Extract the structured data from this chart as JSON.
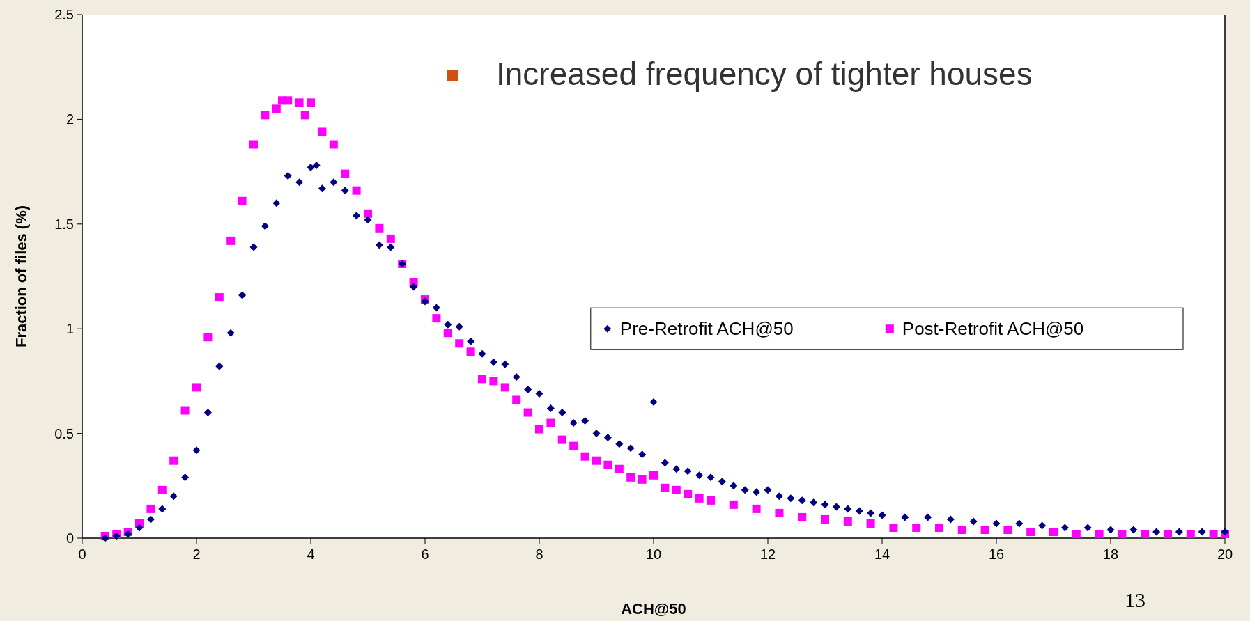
{
  "chart_data": {
    "type": "scatter",
    "xlabel": "ACH@50",
    "ylabel": "Fraction of files (%)",
    "xlim": [
      0,
      20
    ],
    "xticks": [
      0,
      2,
      4,
      6,
      8,
      10,
      12,
      14,
      16,
      18,
      20
    ],
    "ylim": [
      0,
      2.5
    ],
    "yticks": [
      0,
      0.5,
      1,
      1.5,
      2,
      2.5
    ],
    "grid": false,
    "legend": "right",
    "annotations": [
      "Increased frequency of tighter houses",
      "13"
    ],
    "series": [
      {
        "name": "Pre-Retrofit ACH@50",
        "color": "#000080",
        "marker": "diamond",
        "x": [
          0.4,
          0.6,
          0.8,
          1.0,
          1.2,
          1.4,
          1.6,
          1.8,
          2.0,
          2.2,
          2.4,
          2.6,
          2.8,
          3.0,
          3.2,
          3.4,
          3.6,
          3.8,
          4.0,
          4.1,
          4.2,
          4.4,
          4.6,
          4.8,
          5.0,
          5.2,
          5.4,
          5.6,
          5.8,
          6.0,
          6.2,
          6.4,
          6.6,
          6.8,
          7.0,
          7.2,
          7.4,
          7.6,
          7.8,
          8.0,
          8.2,
          8.4,
          8.6,
          8.8,
          9.0,
          9.2,
          9.4,
          9.6,
          9.8,
          10.0,
          10.2,
          10.4,
          10.6,
          10.8,
          11.0,
          11.2,
          11.4,
          11.6,
          11.8,
          12.0,
          12.2,
          12.4,
          12.6,
          12.8,
          13.0,
          13.2,
          13.4,
          13.6,
          13.8,
          14.0,
          14.4,
          14.8,
          15.2,
          15.6,
          16.0,
          16.4,
          16.8,
          17.2,
          17.6,
          18.0,
          18.4,
          18.8,
          19.2,
          19.6,
          20.0
        ],
        "values": [
          0.0,
          0.01,
          0.02,
          0.05,
          0.09,
          0.14,
          0.2,
          0.29,
          0.42,
          0.6,
          0.82,
          0.98,
          1.16,
          1.39,
          1.49,
          1.6,
          1.73,
          1.7,
          1.77,
          1.78,
          1.67,
          1.7,
          1.66,
          1.54,
          1.52,
          1.4,
          1.39,
          1.31,
          1.2,
          1.13,
          1.1,
          1.02,
          1.01,
          0.94,
          0.88,
          0.84,
          0.83,
          0.77,
          0.71,
          0.69,
          0.62,
          0.6,
          0.55,
          0.56,
          0.5,
          0.48,
          0.45,
          0.43,
          0.4,
          0.65,
          0.36,
          0.33,
          0.32,
          0.3,
          0.29,
          0.27,
          0.25,
          0.23,
          0.22,
          0.23,
          0.2,
          0.19,
          0.18,
          0.17,
          0.16,
          0.15,
          0.14,
          0.13,
          0.12,
          0.11,
          0.1,
          0.1,
          0.09,
          0.08,
          0.07,
          0.07,
          0.06,
          0.05,
          0.05,
          0.04,
          0.04,
          0.03,
          0.03,
          0.03,
          0.03
        ]
      },
      {
        "name": "Post-Retrofit ACH@50",
        "color": "#ff00ff",
        "marker": "square",
        "x": [
          0.4,
          0.6,
          0.8,
          1.0,
          1.2,
          1.4,
          1.6,
          1.8,
          2.0,
          2.2,
          2.4,
          2.6,
          2.8,
          3.0,
          3.2,
          3.4,
          3.5,
          3.6,
          3.8,
          3.9,
          4.0,
          4.2,
          4.4,
          4.6,
          4.8,
          5.0,
          5.2,
          5.4,
          5.6,
          5.8,
          6.0,
          6.2,
          6.4,
          6.6,
          6.8,
          7.0,
          7.2,
          7.4,
          7.6,
          7.8,
          8.0,
          8.2,
          8.4,
          8.6,
          8.8,
          9.0,
          9.2,
          9.4,
          9.6,
          9.8,
          10.0,
          10.2,
          10.4,
          10.6,
          10.8,
          11.0,
          11.4,
          11.8,
          12.2,
          12.6,
          13.0,
          13.4,
          13.8,
          14.2,
          14.6,
          15.0,
          15.4,
          15.8,
          16.2,
          16.6,
          17.0,
          17.4,
          17.8,
          18.2,
          18.6,
          19.0,
          19.4,
          19.8,
          20.0
        ],
        "values": [
          0.01,
          0.02,
          0.03,
          0.07,
          0.14,
          0.23,
          0.37,
          0.61,
          0.72,
          0.96,
          1.15,
          1.42,
          1.61,
          1.88,
          2.02,
          2.05,
          2.09,
          2.09,
          2.08,
          2.02,
          2.08,
          1.94,
          1.88,
          1.74,
          1.66,
          1.55,
          1.48,
          1.43,
          1.31,
          1.22,
          1.14,
          1.05,
          0.98,
          0.93,
          0.89,
          0.76,
          0.75,
          0.72,
          0.66,
          0.6,
          0.52,
          0.55,
          0.47,
          0.44,
          0.39,
          0.37,
          0.35,
          0.33,
          0.29,
          0.28,
          0.3,
          0.24,
          0.23,
          0.21,
          0.19,
          0.18,
          0.16,
          0.14,
          0.12,
          0.1,
          0.09,
          0.08,
          0.07,
          0.05,
          0.05,
          0.05,
          0.04,
          0.04,
          0.04,
          0.03,
          0.03,
          0.02,
          0.02,
          0.02,
          0.02,
          0.02,
          0.02,
          0.02,
          0.02
        ]
      }
    ]
  }
}
